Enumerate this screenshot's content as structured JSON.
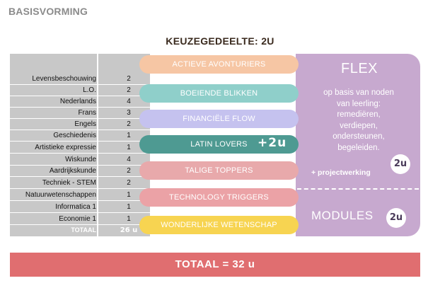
{
  "header": {
    "title": "BASISVORMING"
  },
  "keuze": {
    "title": "KEUZEGEDEELTE: 2U"
  },
  "subjects": [
    {
      "name": "Levensbeschouwing",
      "hours": "2"
    },
    {
      "name": "L.O.",
      "hours": "2"
    },
    {
      "name": "Nederlands",
      "hours": "4"
    },
    {
      "name": "Frans",
      "hours": "3"
    },
    {
      "name": "Engels",
      "hours": "2"
    },
    {
      "name": "Geschiedenis",
      "hours": "1"
    },
    {
      "name": "Artistieke expressie",
      "hours": "1"
    },
    {
      "name": "Wiskunde",
      "hours": "4"
    },
    {
      "name": "Aardrijkskunde",
      "hours": "2"
    },
    {
      "name": "Techniek - STEM",
      "hours": "2"
    },
    {
      "name": "Natuurwetenschappen",
      "hours": "1"
    },
    {
      "name": "Informatica 1",
      "hours": "1"
    },
    {
      "name": "Economie 1",
      "hours": "1"
    }
  ],
  "base_total": {
    "label": "TOTAAL",
    "hours": "26 u"
  },
  "options": [
    {
      "label": "ACTIEVE AVONTURIERS",
      "color": "#f6c6a4"
    },
    {
      "label": "BOEIENDE BLIKKEN",
      "color": "#8fcfca"
    },
    {
      "label": "FINANCIËLE FLOW",
      "color": "#c5c2ef"
    },
    {
      "label": "LATIN LOVERS",
      "color": "#4e9a92"
    },
    {
      "label": "TALIGE TOPPERS",
      "color": "#e8a9ab"
    },
    {
      "label": "TECHNOLOGY TRIGGERS",
      "color": "#eba2a6"
    },
    {
      "label": "WONDERLIJKE WETENSCHAP",
      "color": "#f7d451"
    }
  ],
  "latin_extra": "+2u",
  "flex": {
    "title": "FLEX",
    "lines": [
      "op basis van noden",
      "van leerling:",
      "remediëren,",
      "verdiepen,",
      "ondersteunen,",
      "begeleiden."
    ],
    "project": "+ projectwerking",
    "hours": "2u",
    "panel_color": "#c7a9cf"
  },
  "modules": {
    "title": "MODULES",
    "hours": "2u"
  },
  "grand_total": {
    "label": "TOTAAL = 32 u",
    "color": "#e06e70"
  }
}
